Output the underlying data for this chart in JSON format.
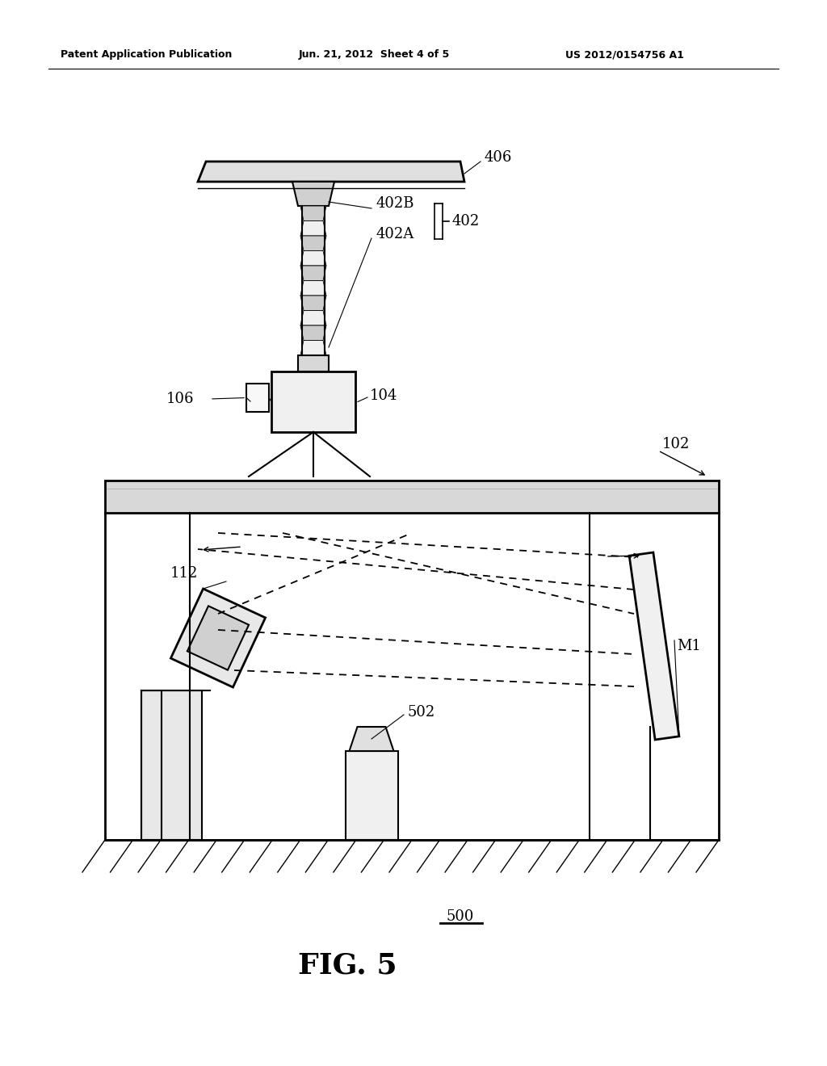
{
  "bg_color": "#ffffff",
  "line_color": "#000000",
  "header_left": "Patent Application Publication",
  "header_center": "Jun. 21, 2012  Sheet 4 of 5",
  "header_right": "US 2012/0154756 A1",
  "fig_label": "FIG. 5",
  "fig_number": "500"
}
